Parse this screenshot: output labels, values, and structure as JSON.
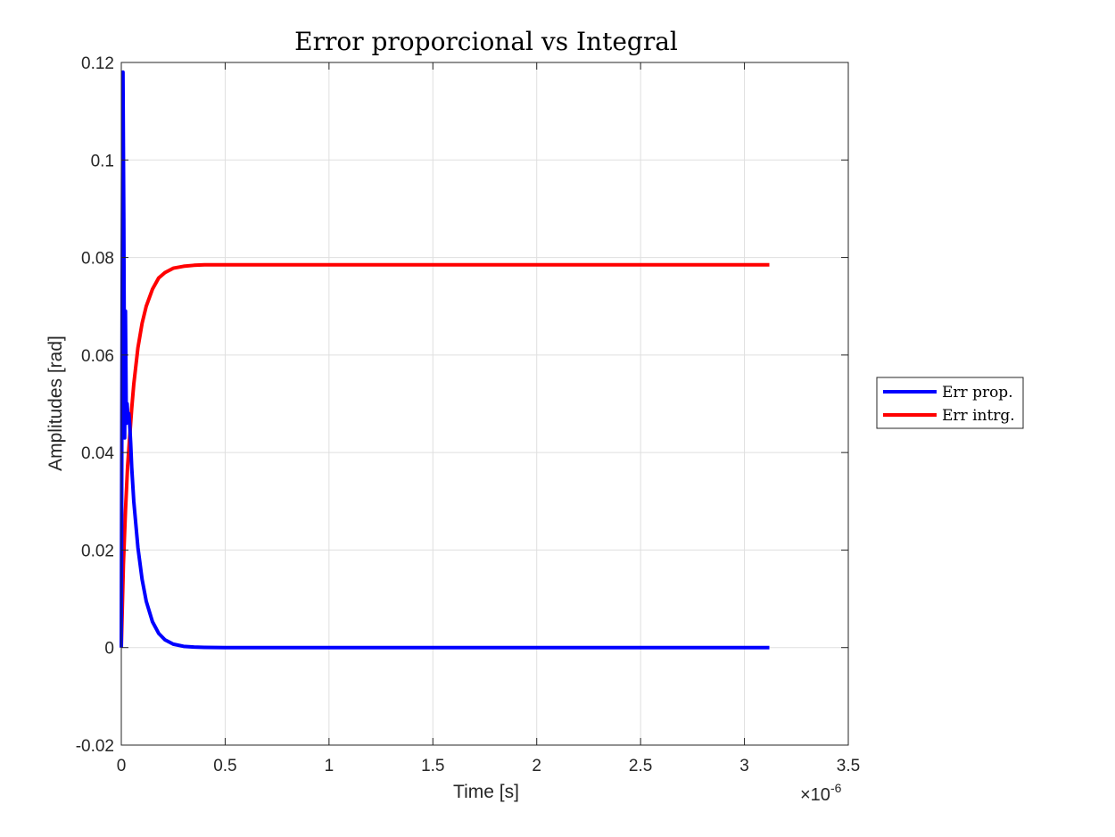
{
  "chart_data": {
    "type": "line",
    "title": "Error proporcional vs Integral",
    "xlabel": "Time [s]",
    "ylabel": "Amplitudes [rad]",
    "x_exponent_prefix": "×10",
    "x_exponent_power": "-6",
    "xlim": [
      0,
      3.5
    ],
    "ylim": [
      -0.02,
      0.12
    ],
    "x_ticks": [
      "0",
      "0.5",
      "1",
      "1.5",
      "2",
      "2.5",
      "3",
      "3.5"
    ],
    "y_ticks": [
      "-0.02",
      "0",
      "0.02",
      "0.04",
      "0.06",
      "0.08",
      "0.1",
      "0.12"
    ],
    "grid": true,
    "legend_position": "outside-right",
    "series": [
      {
        "name": "Err prop.",
        "color": "#0000ff",
        "x": [
          0,
          0.004,
          0.008,
          0.012,
          0.016,
          0.02,
          0.024,
          0.028,
          0.032,
          0.036,
          0.04,
          0.045,
          0.05,
          0.06,
          0.08,
          0.1,
          0.12,
          0.15,
          0.18,
          0.21,
          0.25,
          0.3,
          0.35,
          0.4,
          0.5,
          1.0,
          2.0,
          3.12
        ],
        "y": [
          0,
          0.072,
          0.118,
          0.088,
          0.043,
          0.069,
          0.046,
          0.05,
          0.047,
          0.048,
          0.046,
          0.042,
          0.037,
          0.03,
          0.0205,
          0.014,
          0.0095,
          0.0053,
          0.0029,
          0.0016,
          0.0007,
          0.00025,
          0.0001,
          4e-05,
          0,
          0,
          0,
          0
        ]
      },
      {
        "name": "Err intrg.",
        "color": "#ff0000",
        "x": [
          0,
          0.01,
          0.02,
          0.03,
          0.04,
          0.05,
          0.06,
          0.08,
          0.1,
          0.12,
          0.15,
          0.18,
          0.21,
          0.25,
          0.3,
          0.35,
          0.4,
          0.5,
          1.0,
          2.0,
          3.12
        ],
        "y": [
          0,
          0.017,
          0.028,
          0.037,
          0.043,
          0.049,
          0.054,
          0.0615,
          0.0665,
          0.07,
          0.0735,
          0.0758,
          0.0769,
          0.0778,
          0.0782,
          0.0784,
          0.0785,
          0.0785,
          0.0785,
          0.0785,
          0.0785
        ]
      }
    ]
  }
}
